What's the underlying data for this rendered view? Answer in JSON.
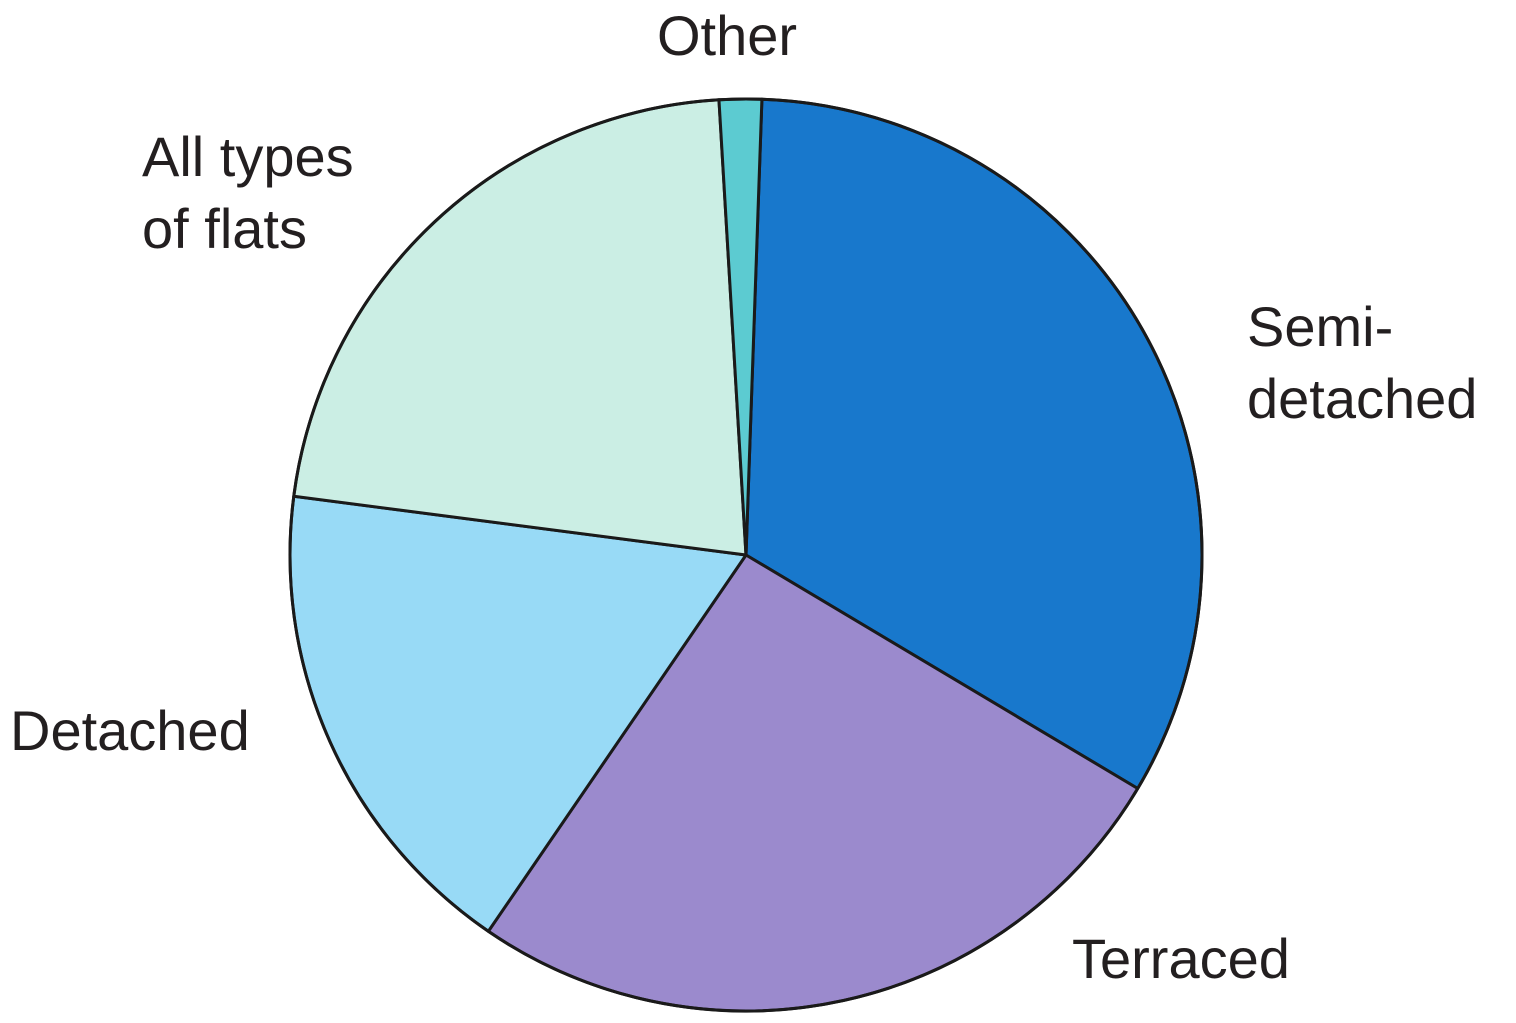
{
  "chart_data": {
    "type": "pie",
    "title": "",
    "start_angle_deg": 2,
    "direction": "clockwise",
    "slices": [
      {
        "label": "Semi-detached",
        "label_lines": [
          "Semi-",
          "detached"
        ],
        "value": 33.0,
        "color": "#1878cc"
      },
      {
        "label": "Terraced",
        "label_lines": [
          "Terraced"
        ],
        "value": 26.0,
        "color": "#9b8acd"
      },
      {
        "label": "Detached",
        "label_lines": [
          "Detached"
        ],
        "value": 17.5,
        "color": "#98daf6"
      },
      {
        "label": "All types of flats",
        "label_lines": [
          "All types",
          "of flats"
        ],
        "value": 22.0,
        "color": "#cbeee4"
      },
      {
        "label": "Other",
        "label_lines": [
          "Other"
        ],
        "value": 1.5,
        "color": "#5ccbd1"
      }
    ]
  }
}
